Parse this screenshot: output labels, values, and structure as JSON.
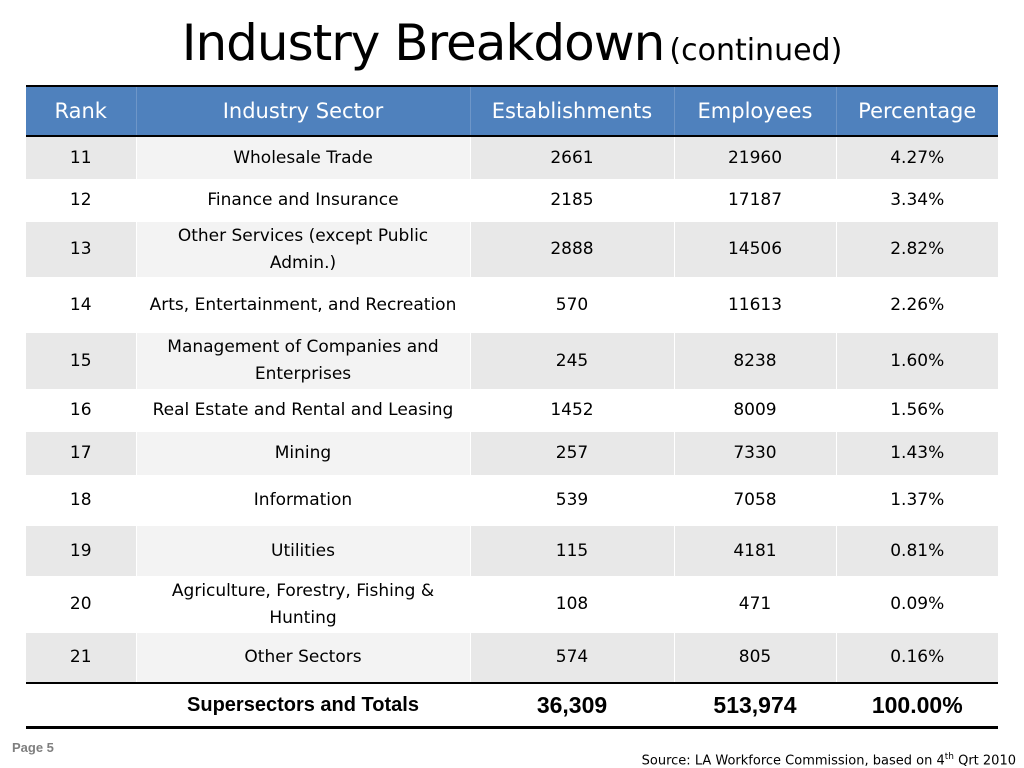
{
  "title": {
    "main": "Industry Breakdown",
    "sub": "(continued)"
  },
  "table": {
    "headers": [
      "Rank",
      "Industry Sector",
      "Establishments",
      "Employees",
      "Percentage"
    ],
    "rows": [
      {
        "rank": "11",
        "sector": "Wholesale Trade",
        "establishments": "2661",
        "employees": "21960",
        "percentage": "4.27%"
      },
      {
        "rank": "12",
        "sector": "Finance and Insurance",
        "establishments": "2185",
        "employees": "17187",
        "percentage": "3.34%"
      },
      {
        "rank": "13",
        "sector": "Other Services (except Public Admin.)",
        "establishments": "2888",
        "employees": "14506",
        "percentage": "2.82%"
      },
      {
        "rank": "14",
        "sector": "Arts, Entertainment, and Recreation",
        "establishments": "570",
        "employees": "11613",
        "percentage": "2.26%"
      },
      {
        "rank": "15",
        "sector": "Management of Companies and Enterprises",
        "establishments": "245",
        "employees": "8238",
        "percentage": "1.60%"
      },
      {
        "rank": "16",
        "sector": "Real Estate and Rental and Leasing",
        "establishments": "1452",
        "employees": "8009",
        "percentage": "1.56%"
      },
      {
        "rank": "17",
        "sector": "Mining",
        "establishments": "257",
        "employees": "7330",
        "percentage": "1.43%"
      },
      {
        "rank": "18",
        "sector": "Information",
        "establishments": "539",
        "employees": "7058",
        "percentage": "1.37%"
      },
      {
        "rank": "19",
        "sector": "Utilities",
        "establishments": "115",
        "employees": "4181",
        "percentage": "0.81%"
      },
      {
        "rank": "20",
        "sector": "Agriculture, Forestry, Fishing & Hunting",
        "establishments": "108",
        "employees": "471",
        "percentage": "0.09%"
      },
      {
        "rank": "21",
        "sector": "Other Sectors",
        "establishments": "574",
        "employees": "805",
        "percentage": "0.16%"
      }
    ],
    "totals": {
      "label": "Supersectors and Totals",
      "establishments": "36,309",
      "employees": "513,974",
      "percentage": "100.00%"
    }
  },
  "footer": {
    "page": "Page 5",
    "source_prefix": "Source: LA Workforce Commission, based on 4",
    "source_sup": "th",
    "source_suffix": " Qrt 2010"
  },
  "colors": {
    "header_bg": "#4f81bd",
    "band": "#e8e8e8",
    "page_label": "#7f7f7f"
  }
}
